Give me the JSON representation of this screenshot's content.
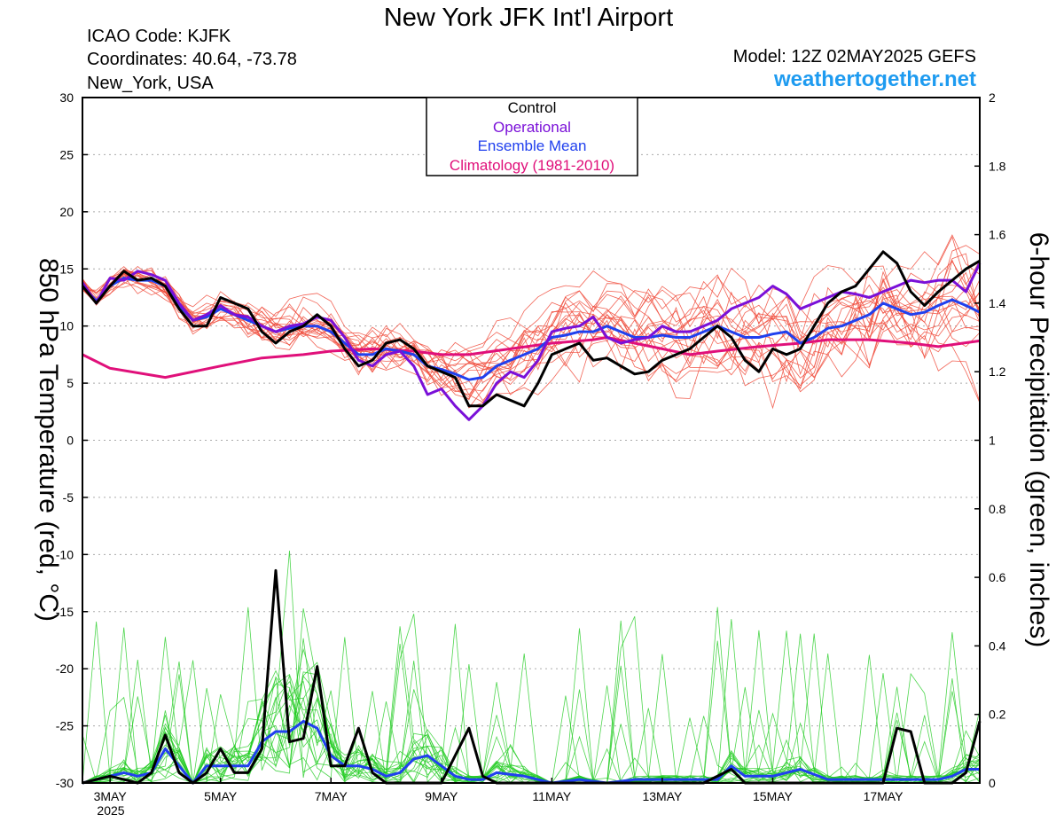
{
  "header": {
    "title": "New York JFK Int'l Airport",
    "icao": "ICAO Code: KJFK",
    "coords": "Coordinates: 40.64, -73.78",
    "location": "New_York, USA",
    "model": "Model: 12Z 02MAY2025 GEFS",
    "site": "weathertogether.net"
  },
  "legend": {
    "items": [
      {
        "label": "Control",
        "color": "#000000"
      },
      {
        "label": "Operational",
        "color": "#7a10d8"
      },
      {
        "label": "Ensemble Mean",
        "color": "#2040ee"
      },
      {
        "label": "Climatology (1981-2010)",
        "color": "#e0107a"
      }
    ]
  },
  "chart_data": {
    "type": "line",
    "xlabel": "",
    "ylabel_left": "850 hPa Temperature (red, °C)",
    "ylabel_right": "6-hour Precipitation (green, inches)",
    "x_range_days": [
      2.5,
      18.75
    ],
    "ylim_left": [
      -30,
      30
    ],
    "ylim_right": [
      0,
      2
    ],
    "left_ticks": [
      30,
      25,
      20,
      15,
      10,
      5,
      0,
      -5,
      -10,
      -15,
      -20,
      -25,
      -30
    ],
    "right_ticks": [
      "2",
      "1.8",
      "1.6",
      "1.4",
      "1.2",
      "1",
      "0.8",
      "0.6",
      "0.4",
      "0.2",
      "0"
    ],
    "x_ticks": [
      {
        "label": "3MAY",
        "day": 3
      },
      {
        "label": "5MAY",
        "day": 5
      },
      {
        "label": "7MAY",
        "day": 7
      },
      {
        "label": "9MAY",
        "day": 9
      },
      {
        "label": "11MAY",
        "day": 11
      },
      {
        "label": "13MAY",
        "day": 13
      },
      {
        "label": "15MAY",
        "day": 15
      },
      {
        "label": "17MAY",
        "day": 17
      }
    ],
    "year_label": "2025",
    "grid": true,
    "temperature": {
      "control": [
        [
          2.5,
          13.5
        ],
        [
          2.75,
          12
        ],
        [
          3,
          13.5
        ],
        [
          3.25,
          14.8
        ],
        [
          3.5,
          14
        ],
        [
          3.75,
          14.2
        ],
        [
          4,
          13.5
        ],
        [
          4.25,
          11.5
        ],
        [
          4.5,
          10
        ],
        [
          4.75,
          10
        ],
        [
          5,
          12.5
        ],
        [
          5.25,
          12
        ],
        [
          5.5,
          11.5
        ],
        [
          5.75,
          9.5
        ],
        [
          6,
          8.5
        ],
        [
          6.25,
          9.5
        ],
        [
          6.5,
          10
        ],
        [
          6.75,
          11
        ],
        [
          7,
          10
        ],
        [
          7.25,
          8
        ],
        [
          7.5,
          6.5
        ],
        [
          7.75,
          7
        ],
        [
          8,
          8.5
        ],
        [
          8.25,
          8.8
        ],
        [
          8.5,
          8
        ],
        [
          8.75,
          6.5
        ],
        [
          9,
          6
        ],
        [
          9.25,
          5.5
        ],
        [
          9.5,
          3
        ],
        [
          9.75,
          3
        ],
        [
          10,
          4
        ],
        [
          10.25,
          3.5
        ],
        [
          10.5,
          3
        ],
        [
          10.75,
          5
        ],
        [
          11,
          7.5
        ],
        [
          11.25,
          8
        ],
        [
          11.5,
          8.5
        ],
        [
          11.75,
          7
        ],
        [
          12,
          7.2
        ],
        [
          12.25,
          6.5
        ],
        [
          12.5,
          5.8
        ],
        [
          12.75,
          6
        ],
        [
          13,
          7
        ],
        [
          13.25,
          7.5
        ],
        [
          13.5,
          8
        ],
        [
          13.75,
          9
        ],
        [
          14,
          10
        ],
        [
          14.25,
          9
        ],
        [
          14.5,
          7
        ],
        [
          14.75,
          6
        ],
        [
          15,
          8
        ],
        [
          15.25,
          7.5
        ],
        [
          15.5,
          8
        ],
        [
          15.75,
          10
        ],
        [
          16,
          12
        ],
        [
          16.25,
          13
        ],
        [
          16.5,
          13.5
        ],
        [
          16.75,
          15
        ],
        [
          17,
          16.5
        ],
        [
          17.25,
          15.5
        ],
        [
          17.5,
          13
        ],
        [
          17.75,
          11.8
        ],
        [
          18,
          13
        ],
        [
          18.25,
          14
        ],
        [
          18.5,
          15
        ],
        [
          18.75,
          15.7
        ]
      ],
      "operational": [
        [
          2.5,
          13.8
        ],
        [
          2.75,
          12
        ],
        [
          3,
          14.2
        ],
        [
          3.25,
          14
        ],
        [
          3.5,
          14.8
        ],
        [
          3.75,
          14.5
        ],
        [
          4,
          14
        ],
        [
          4.25,
          12
        ],
        [
          4.5,
          10.5
        ],
        [
          4.75,
          11
        ],
        [
          5,
          11.8
        ],
        [
          5.25,
          11
        ],
        [
          5.5,
          10.8
        ],
        [
          5.75,
          10
        ],
        [
          6,
          9.5
        ],
        [
          6.25,
          10
        ],
        [
          6.5,
          10.2
        ],
        [
          6.75,
          10.8
        ],
        [
          7,
          10.5
        ],
        [
          7.25,
          9
        ],
        [
          7.5,
          7
        ],
        [
          7.75,
          6.5
        ],
        [
          8,
          7.5
        ],
        [
          8.25,
          7.8
        ],
        [
          8.5,
          6.5
        ],
        [
          8.75,
          4
        ],
        [
          9,
          4.5
        ],
        [
          9.25,
          3
        ],
        [
          9.5,
          1.8
        ],
        [
          9.75,
          3
        ],
        [
          10,
          5
        ],
        [
          10.25,
          6
        ],
        [
          10.5,
          5.5
        ],
        [
          10.75,
          7
        ],
        [
          11,
          9.5
        ],
        [
          11.25,
          9.8
        ],
        [
          11.5,
          10
        ],
        [
          11.75,
          10.8
        ],
        [
          12,
          9
        ],
        [
          12.25,
          8.5
        ],
        [
          12.5,
          8.8
        ],
        [
          12.75,
          9
        ],
        [
          13,
          10
        ],
        [
          13.25,
          9.5
        ],
        [
          13.5,
          9.5
        ],
        [
          13.75,
          10
        ],
        [
          14,
          10.5
        ],
        [
          14.25,
          11.5
        ],
        [
          14.5,
          12
        ],
        [
          14.75,
          12.5
        ],
        [
          15,
          13.5
        ],
        [
          15.25,
          12.8
        ],
        [
          15.5,
          11.5
        ],
        [
          15.75,
          12
        ],
        [
          16,
          12.5
        ],
        [
          16.25,
          13
        ],
        [
          16.5,
          12.8
        ],
        [
          16.75,
          12.5
        ],
        [
          17,
          13
        ],
        [
          17.25,
          13.5
        ],
        [
          17.5,
          14
        ],
        [
          17.75,
          13.8
        ],
        [
          18,
          14
        ],
        [
          18.25,
          14
        ],
        [
          18.5,
          13
        ],
        [
          18.75,
          15.5
        ]
      ],
      "ensemble_mean": [
        [
          2.5,
          13.5
        ],
        [
          2.75,
          12.2
        ],
        [
          3,
          13.5
        ],
        [
          3.25,
          14.2
        ],
        [
          3.5,
          14
        ],
        [
          3.75,
          14
        ],
        [
          4,
          13.5
        ],
        [
          4.25,
          11.8
        ],
        [
          4.5,
          10.5
        ],
        [
          4.75,
          10.8
        ],
        [
          5,
          11.5
        ],
        [
          5.25,
          11
        ],
        [
          5.5,
          10.5
        ],
        [
          5.75,
          10
        ],
        [
          6,
          9.5
        ],
        [
          6.25,
          9.8
        ],
        [
          6.5,
          10
        ],
        [
          6.75,
          10
        ],
        [
          7,
          9.5
        ],
        [
          7.25,
          8.5
        ],
        [
          7.5,
          7.5
        ],
        [
          7.75,
          7.5
        ],
        [
          8,
          8
        ],
        [
          8.25,
          7.8
        ],
        [
          8.5,
          7.5
        ],
        [
          8.75,
          6.5
        ],
        [
          9,
          6.2
        ],
        [
          9.25,
          5.8
        ],
        [
          9.5,
          5.3
        ],
        [
          9.75,
          5.5
        ],
        [
          10,
          6.5
        ],
        [
          10.25,
          7
        ],
        [
          10.5,
          7.5
        ],
        [
          10.75,
          8
        ],
        [
          11,
          9
        ],
        [
          11.25,
          9.2
        ],
        [
          11.5,
          9.5
        ],
        [
          11.75,
          9.5
        ],
        [
          12,
          10
        ],
        [
          12.25,
          9.5
        ],
        [
          12.5,
          9
        ],
        [
          12.75,
          9
        ],
        [
          13,
          9.2
        ],
        [
          13.25,
          9
        ],
        [
          13.5,
          9
        ],
        [
          13.75,
          9.5
        ],
        [
          14,
          10
        ],
        [
          14.25,
          9.5
        ],
        [
          14.5,
          9
        ],
        [
          14.75,
          9
        ],
        [
          15,
          9.3
        ],
        [
          15.25,
          9.5
        ],
        [
          15.5,
          8.5
        ],
        [
          15.75,
          9
        ],
        [
          16,
          9.8
        ],
        [
          16.25,
          10
        ],
        [
          16.5,
          10.5
        ],
        [
          16.75,
          11
        ],
        [
          17,
          12
        ],
        [
          17.25,
          11.5
        ],
        [
          17.5,
          11
        ],
        [
          17.75,
          11.2
        ],
        [
          18,
          11.8
        ],
        [
          18.25,
          12.3
        ],
        [
          18.5,
          11.8
        ],
        [
          18.75,
          11.2
        ]
      ],
      "climatology": [
        [
          2.5,
          7.5
        ],
        [
          3,
          6.3
        ],
        [
          4,
          5.5
        ],
        [
          5,
          6.5
        ],
        [
          5.75,
          7.2
        ],
        [
          6.5,
          7.5
        ],
        [
          7,
          7.8
        ],
        [
          7.75,
          8
        ],
        [
          8.5,
          7.8
        ],
        [
          9,
          7.5
        ],
        [
          9.5,
          7.5
        ],
        [
          10.25,
          8
        ],
        [
          11,
          8.5
        ],
        [
          11.75,
          8.8
        ],
        [
          12,
          9
        ],
        [
          12.5,
          8.5
        ],
        [
          13,
          8
        ],
        [
          13.5,
          7.5
        ],
        [
          14,
          7.8
        ],
        [
          14.75,
          8.2
        ],
        [
          15.5,
          8.5
        ],
        [
          16,
          8.8
        ],
        [
          16.75,
          8.8
        ],
        [
          17.5,
          8.5
        ],
        [
          18,
          8.2
        ],
        [
          18.75,
          8.7
        ]
      ],
      "members_note": "20 ensemble members drawn as thin red lines around the mean"
    },
    "precipitation": {
      "control": [
        [
          2.5,
          0
        ],
        [
          2.75,
          0.01
        ],
        [
          3,
          0.02
        ],
        [
          3.25,
          0.01
        ],
        [
          3.5,
          0
        ],
        [
          3.75,
          0.03
        ],
        [
          4,
          0.14
        ],
        [
          4.25,
          0.03
        ],
        [
          4.5,
          0
        ],
        [
          4.75,
          0.03
        ],
        [
          5,
          0.1
        ],
        [
          5.25,
          0.03
        ],
        [
          5.5,
          0.03
        ],
        [
          5.75,
          0.1
        ],
        [
          6,
          0.62
        ],
        [
          6.25,
          0.12
        ],
        [
          6.5,
          0.13
        ],
        [
          6.75,
          0.34
        ],
        [
          7,
          0.05
        ],
        [
          7.25,
          0.05
        ],
        [
          7.5,
          0.16
        ],
        [
          7.75,
          0.03
        ],
        [
          8,
          0
        ],
        [
          8.25,
          0
        ],
        [
          8.5,
          0
        ],
        [
          8.75,
          0
        ],
        [
          9,
          0
        ],
        [
          9.25,
          0.08
        ],
        [
          9.5,
          0.16
        ],
        [
          9.75,
          0.02
        ],
        [
          10,
          0
        ],
        [
          10.5,
          0
        ],
        [
          11,
          0
        ],
        [
          12,
          0
        ],
        [
          13,
          0
        ],
        [
          13.75,
          0
        ],
        [
          14.25,
          0.04
        ],
        [
          14.5,
          0
        ],
        [
          15,
          0
        ],
        [
          16,
          0
        ],
        [
          17,
          0
        ],
        [
          17.25,
          0.16
        ],
        [
          17.5,
          0.15
        ],
        [
          17.75,
          0
        ],
        [
          18,
          0
        ],
        [
          18.25,
          0
        ],
        [
          18.5,
          0.03
        ],
        [
          18.75,
          0.18
        ]
      ],
      "ensemble_mean": [
        [
          2.5,
          0
        ],
        [
          2.75,
          0.01
        ],
        [
          3,
          0.02
        ],
        [
          3.25,
          0.03
        ],
        [
          3.5,
          0.02
        ],
        [
          3.75,
          0.03
        ],
        [
          4,
          0.1
        ],
        [
          4.25,
          0.05
        ],
        [
          4.5,
          0
        ],
        [
          4.75,
          0.05
        ],
        [
          5,
          0.05
        ],
        [
          5.25,
          0.05
        ],
        [
          5.5,
          0.05
        ],
        [
          5.75,
          0.12
        ],
        [
          6,
          0.15
        ],
        [
          6.25,
          0.15
        ],
        [
          6.5,
          0.18
        ],
        [
          6.75,
          0.16
        ],
        [
          7,
          0.08
        ],
        [
          7.25,
          0.05
        ],
        [
          7.5,
          0.05
        ],
        [
          7.75,
          0.04
        ],
        [
          8,
          0.02
        ],
        [
          8.25,
          0.03
        ],
        [
          8.5,
          0.07
        ],
        [
          8.75,
          0.08
        ],
        [
          9,
          0.05
        ],
        [
          9.25,
          0.02
        ],
        [
          9.5,
          0.01
        ],
        [
          9.75,
          0.01
        ],
        [
          10,
          0.03
        ],
        [
          10.5,
          0.02
        ],
        [
          11,
          0
        ],
        [
          11.5,
          0.01
        ],
        [
          12,
          0
        ],
        [
          12.5,
          0.01
        ],
        [
          13,
          0.01
        ],
        [
          13.5,
          0.01
        ],
        [
          14,
          0.01
        ],
        [
          14.25,
          0.05
        ],
        [
          14.5,
          0.02
        ],
        [
          15,
          0.02
        ],
        [
          15.25,
          0.03
        ],
        [
          15.5,
          0.04
        ],
        [
          16,
          0.01
        ],
        [
          16.5,
          0.01
        ],
        [
          17,
          0.01
        ],
        [
          17.5,
          0.01
        ],
        [
          18,
          0.01
        ],
        [
          18.25,
          0.02
        ],
        [
          18.5,
          0.04
        ],
        [
          18.75,
          0.04
        ]
      ],
      "members_note": "20 ensemble members drawn as thin green lines"
    }
  }
}
